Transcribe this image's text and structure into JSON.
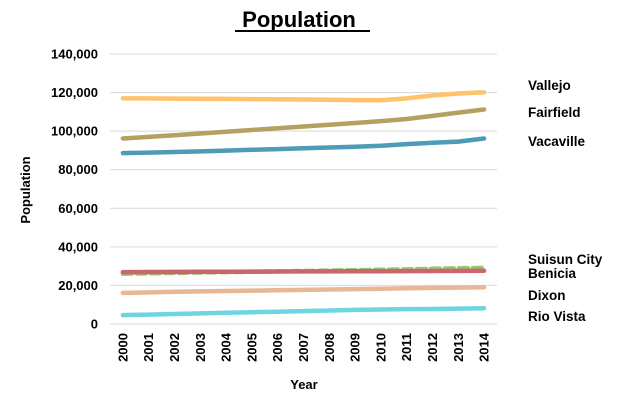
{
  "chart_data": {
    "type": "line",
    "title": "Population",
    "xlabel": "Year",
    "ylabel": "Population",
    "ylim": [
      0,
      140000
    ],
    "yticks": [
      0,
      20000,
      40000,
      60000,
      80000,
      100000,
      120000,
      140000
    ],
    "ytick_labels": [
      "0",
      "20,000",
      "40,000",
      "60,000",
      "80,000",
      "100,000",
      "120,000",
      "140,000"
    ],
    "grid": true,
    "legend": "none",
    "categories": [
      "2000",
      "2001",
      "2002",
      "2003",
      "2004",
      "2005",
      "2006",
      "2007",
      "2008",
      "2009",
      "2010",
      "2011",
      "2012",
      "2013",
      "2014"
    ],
    "series": [
      {
        "name": "Vallejo",
        "color": "#ffc36b",
        "dash": false,
        "values": [
          117000,
          117000,
          116900,
          116800,
          116700,
          116600,
          116500,
          116400,
          116300,
          116100,
          116000,
          117000,
          118500,
          119500,
          120200
        ]
      },
      {
        "name": "Fairfield",
        "color": "#b5a060",
        "dash": false,
        "values": [
          96200,
          97000,
          97900,
          98800,
          99700,
          100600,
          101500,
          102400,
          103300,
          104200,
          105200,
          106300,
          107900,
          109600,
          111200
        ]
      },
      {
        "name": "Vacaville",
        "color": "#4d9bb7",
        "dash": false,
        "values": [
          88600,
          88900,
          89200,
          89500,
          89900,
          90300,
          90700,
          91100,
          91500,
          91900,
          92400,
          93300,
          94000,
          94600,
          96200
        ]
      },
      {
        "name": "Suisun City",
        "color": "#9cc56a",
        "dash": true,
        "values": [
          26100,
          26300,
          26500,
          26700,
          26900,
          27100,
          27300,
          27500,
          27700,
          27900,
          28100,
          28300,
          28600,
          28900,
          29100
        ]
      },
      {
        "name": "Benicia",
        "color": "#c9666e",
        "dash": false,
        "values": [
          26900,
          26950,
          27000,
          27050,
          27100,
          27150,
          27200,
          27250,
          27300,
          27350,
          27400,
          27450,
          27500,
          27550,
          27600
        ]
      },
      {
        "name": "Dixon",
        "color": "#e8b896",
        "dash": false,
        "values": [
          16100,
          16400,
          16700,
          16900,
          17100,
          17300,
          17500,
          17700,
          17900,
          18100,
          18300,
          18500,
          18700,
          18900,
          19100
        ]
      },
      {
        "name": "Rio Vista",
        "color": "#6dd6e0",
        "dash": false,
        "values": [
          4600,
          4900,
          5200,
          5500,
          5800,
          6100,
          6400,
          6700,
          7000,
          7300,
          7500,
          7700,
          7800,
          8000,
          8200
        ]
      }
    ]
  }
}
